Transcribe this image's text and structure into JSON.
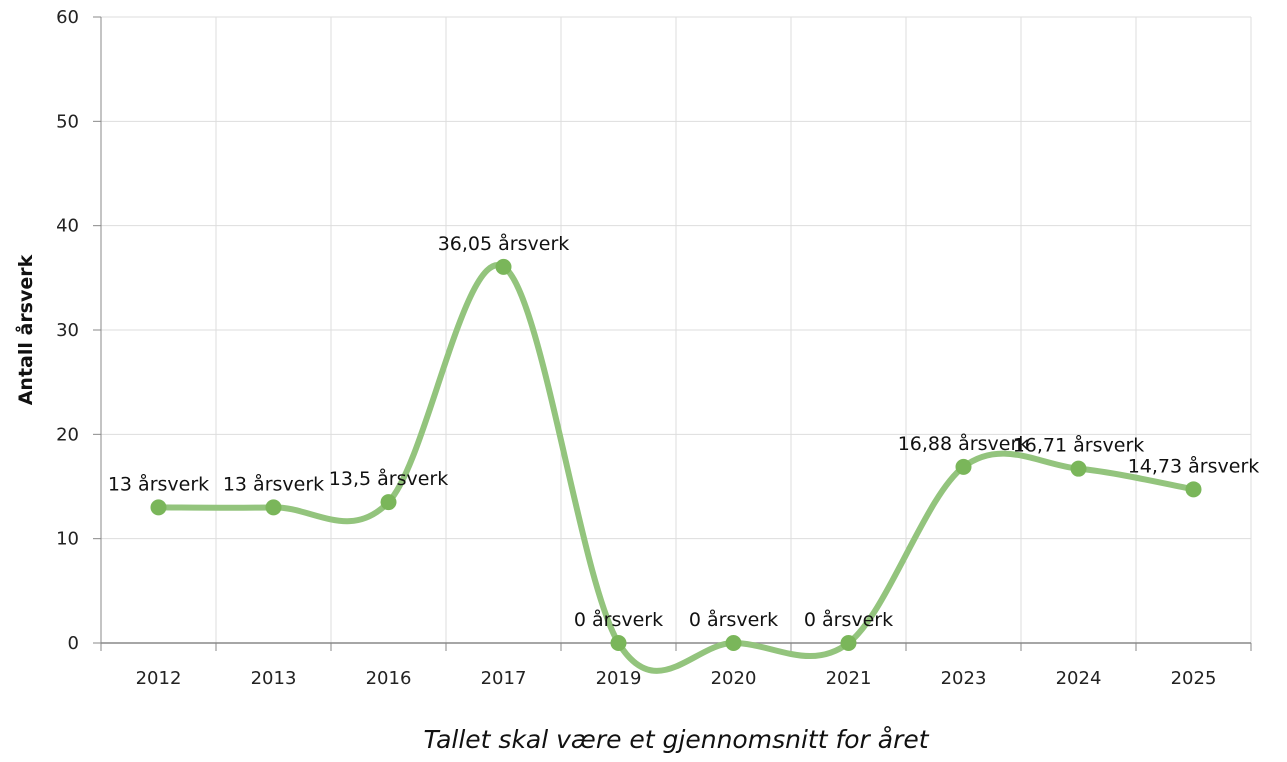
{
  "chart_data": {
    "type": "line",
    "curve": "smooth",
    "categories": [
      "2012",
      "2013",
      "2016",
      "2017",
      "2019",
      "2020",
      "2021",
      "2023",
      "2024",
      "2025"
    ],
    "series": [
      {
        "values": [
          13,
          13,
          13.5,
          36.05,
          0,
          0,
          0,
          16.88,
          16.71,
          14.73
        ],
        "data_labels": [
          "13 årsverk",
          "13 årsverk",
          "13,5 årsverk",
          "36,05 årsverk",
          "0 årsverk",
          "0 årsverk",
          "0 årsverk",
          "16,88 årsverk",
          "16,71 årsverk",
          "14,73 årsverk"
        ],
        "color": "#93c47d",
        "marker_color": "#7ab65a"
      }
    ],
    "title": "",
    "xlabel": "Tallet skal være et gjennomsnitt for året",
    "ylabel": "Antall årsverk",
    "ylim": [
      0,
      60
    ],
    "yticks": [
      "0",
      "10",
      "20",
      "30",
      "40",
      "50",
      "60"
    ],
    "grid": true,
    "grid_color": "#dddddd",
    "axis_color": "#888888",
    "legend": "none"
  }
}
